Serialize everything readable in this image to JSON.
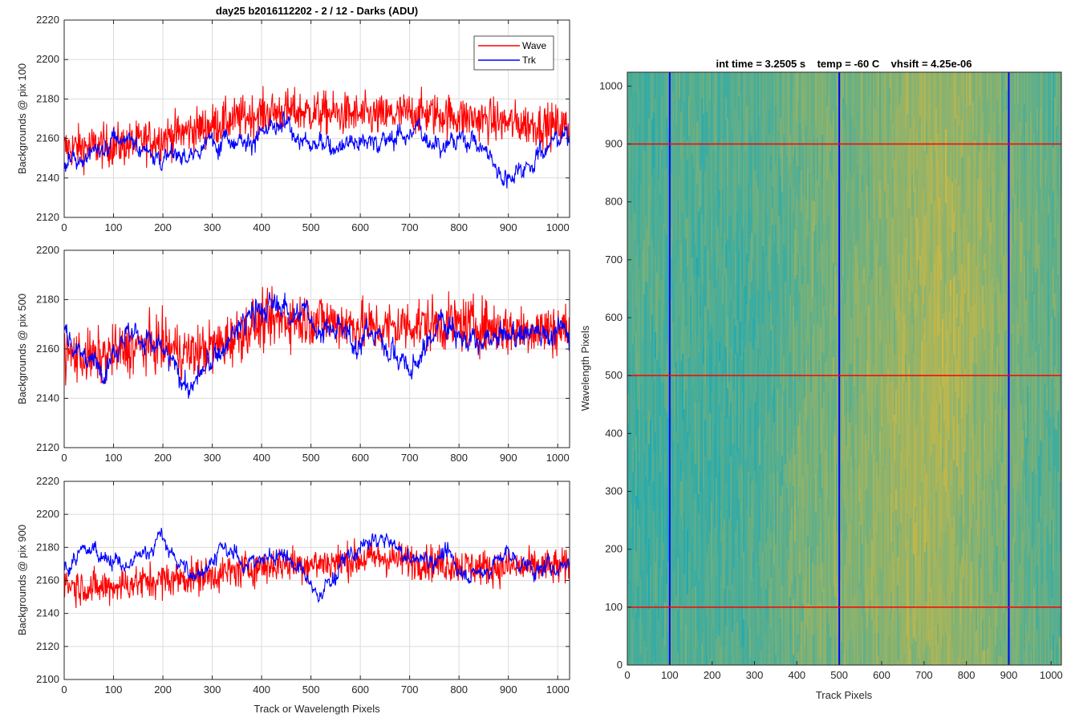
{
  "figure": {
    "title": "day25 b2016112202 - 2 / 12 - Darks (ADU)"
  },
  "chart_data": [
    {
      "type": "line",
      "panel": "top",
      "title": "day25 b2016112202 - 2 / 12 - Darks (ADU)",
      "xlabel": "",
      "ylabel": "Backgrounds @ pix 100",
      "xlim": [
        0,
        1024
      ],
      "ylim": [
        2120,
        2220
      ],
      "xticks": [
        0,
        100,
        200,
        300,
        400,
        500,
        600,
        700,
        800,
        900,
        1000
      ],
      "yticks": [
        2120,
        2140,
        2160,
        2180,
        2200,
        2220
      ],
      "grid": true,
      "legend": "top-right",
      "x": [
        0,
        64,
        128,
        192,
        256,
        320,
        384,
        448,
        512,
        576,
        640,
        704,
        768,
        832,
        896,
        960,
        1024
      ],
      "series": [
        {
          "name": "Wave",
          "color": "#ff0000",
          "values": [
            2155,
            2156,
            2157,
            2160,
            2164,
            2168,
            2172,
            2174,
            2173,
            2172,
            2171,
            2173,
            2172,
            2170,
            2168,
            2167,
            2166
          ]
        },
        {
          "name": "Trk",
          "color": "#0000ff",
          "values": [
            2148,
            2152,
            2160,
            2152,
            2150,
            2162,
            2160,
            2166,
            2155,
            2160,
            2158,
            2164,
            2158,
            2160,
            2140,
            2152,
            2165
          ]
        }
      ]
    },
    {
      "type": "line",
      "panel": "middle",
      "xlabel": "",
      "ylabel": "Backgrounds @ pix 500",
      "xlim": [
        0,
        1024
      ],
      "ylim": [
        2120,
        2200
      ],
      "xticks": [
        0,
        100,
        200,
        300,
        400,
        500,
        600,
        700,
        800,
        900,
        1000
      ],
      "yticks": [
        2120,
        2140,
        2160,
        2180,
        2200
      ],
      "grid": true,
      "x": [
        0,
        64,
        128,
        192,
        256,
        320,
        384,
        448,
        512,
        576,
        640,
        704,
        768,
        832,
        896,
        960,
        1024
      ],
      "series": [
        {
          "name": "Wave",
          "color": "#ff0000",
          "values": [
            2158,
            2156,
            2160,
            2162,
            2158,
            2162,
            2170,
            2172,
            2172,
            2170,
            2168,
            2170,
            2170,
            2170,
            2168,
            2168,
            2168
          ]
        },
        {
          "name": "Trk",
          "color": "#0000ff",
          "values": [
            2168,
            2152,
            2168,
            2160,
            2144,
            2160,
            2175,
            2178,
            2170,
            2164,
            2166,
            2150,
            2174,
            2160,
            2165,
            2168,
            2166
          ]
        }
      ]
    },
    {
      "type": "line",
      "panel": "bottom",
      "xlabel": "Track or Wavelength Pixels",
      "ylabel": "Backgrounds @ pix 900",
      "xlim": [
        0,
        1024
      ],
      "ylim": [
        2100,
        2220
      ],
      "xticks": [
        0,
        100,
        200,
        300,
        400,
        500,
        600,
        700,
        800,
        900,
        1000
      ],
      "yticks": [
        2100,
        2120,
        2140,
        2160,
        2180,
        2200,
        2220
      ],
      "grid": true,
      "x": [
        0,
        64,
        128,
        192,
        256,
        320,
        384,
        448,
        512,
        576,
        640,
        704,
        768,
        832,
        896,
        960,
        1024
      ],
      "series": [
        {
          "name": "Wave",
          "color": "#ff0000",
          "values": [
            2158,
            2155,
            2158,
            2160,
            2162,
            2164,
            2168,
            2170,
            2170,
            2172,
            2174,
            2172,
            2170,
            2168,
            2168,
            2168,
            2168
          ]
        },
        {
          "name": "Trk",
          "color": "#0000ff",
          "values": [
            2168,
            2180,
            2166,
            2186,
            2162,
            2178,
            2170,
            2178,
            2150,
            2174,
            2186,
            2172,
            2175,
            2162,
            2176,
            2165,
            2172
          ]
        }
      ]
    },
    {
      "type": "heatmap",
      "panel": "right",
      "title": "int time = 3.2505 s    temp = -60 C    vhsift = 4.25e-06",
      "xlabel": "Track Pixels",
      "ylabel": "Wavelength Pixels",
      "xlim": [
        0,
        1024
      ],
      "ylim": [
        0,
        1024
      ],
      "xticks": [
        0,
        100,
        200,
        300,
        400,
        500,
        600,
        700,
        800,
        900,
        1000
      ],
      "yticks": [
        0,
        100,
        200,
        300,
        400,
        500,
        600,
        700,
        800,
        900,
        1000
      ],
      "colormap_low": "#1ea9b4",
      "colormap_high": "#d9b93b",
      "vertical_lines": {
        "color": "#0000ff",
        "x": [
          100,
          500,
          900
        ]
      },
      "horizontal_lines": {
        "color": "#ff0000",
        "y": [
          100,
          500,
          900
        ]
      }
    }
  ]
}
